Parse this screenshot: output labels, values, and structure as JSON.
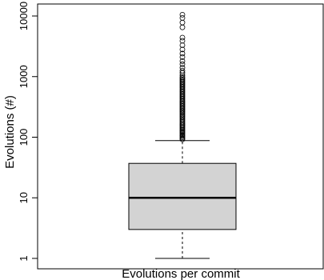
{
  "chart_data": {
    "type": "boxplot",
    "title": "",
    "xlabel": "Evolutions per commit",
    "ylabel": "Evolutions (#)",
    "y_scale": "log",
    "ylim": [
      0.8,
      12000
    ],
    "y_ticks": [
      1,
      10,
      100,
      1000,
      10000
    ],
    "y_tick_labels": [
      "1",
      "10",
      "100",
      "1000",
      "10000"
    ],
    "grid": false,
    "legend": "none",
    "box": {
      "whisker_low": 1,
      "q1": 3,
      "median": 10,
      "q3": 37,
      "whisker_high": 88
    },
    "outliers": [
      92,
      96,
      100,
      104,
      108,
      112,
      117,
      122,
      127,
      132,
      138,
      144,
      150,
      157,
      164,
      171,
      179,
      187,
      196,
      205,
      215,
      225,
      236,
      247,
      259,
      271,
      284,
      297,
      311,
      326,
      341,
      357,
      374,
      392,
      410,
      430,
      450,
      470,
      492,
      515,
      540,
      565,
      592,
      620,
      650,
      680,
      712,
      745,
      780,
      817,
      855,
      895,
      937,
      980,
      1050,
      1150,
      1250,
      1400,
      1600,
      1800,
      2100,
      2400,
      2800,
      3300,
      3900,
      4400,
      6500,
      7800,
      9300,
      10500
    ],
    "colors": {
      "box_fill": "#d3d3d3",
      "stroke": "#000000"
    }
  }
}
